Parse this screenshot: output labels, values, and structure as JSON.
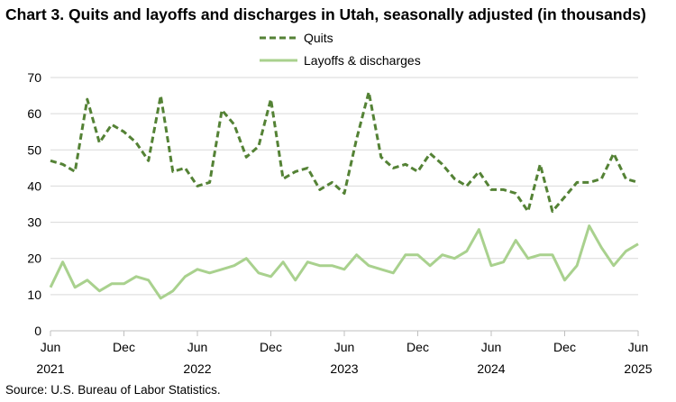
{
  "title": "Chart 3. Quits and layoffs and discharges in Utah, seasonally adjusted (in thousands)",
  "source": "Source: U.S. Bureau of Labor Statistics.",
  "chart_data": {
    "type": "line",
    "title": "Chart 3. Quits and layoffs and discharges in Utah, seasonally adjusted (in thousands)",
    "xlabel": "",
    "ylabel": "",
    "ylim": [
      0,
      70
    ],
    "yticks": [
      "0",
      "10",
      "20",
      "30",
      "40",
      "50",
      "60",
      "70"
    ],
    "grid": true,
    "legend": "top-center",
    "xtick_labels": [
      {
        "month": "Jun",
        "year": "2021"
      },
      {
        "month": "Dec",
        "year": ""
      },
      {
        "month": "Jun",
        "year": "2022"
      },
      {
        "month": "Dec",
        "year": ""
      },
      {
        "month": "Jun",
        "year": "2023"
      },
      {
        "month": "Dec",
        "year": ""
      },
      {
        "month": "Jun",
        "year": "2024"
      },
      {
        "month": "Dec",
        "year": ""
      },
      {
        "month": "Jun",
        "year": "2025"
      }
    ],
    "x": [
      "2021-06",
      "2021-07",
      "2021-08",
      "2021-09",
      "2021-10",
      "2021-11",
      "2021-12",
      "2022-01",
      "2022-02",
      "2022-03",
      "2022-04",
      "2022-05",
      "2022-06",
      "2022-07",
      "2022-08",
      "2022-09",
      "2022-10",
      "2022-11",
      "2022-12",
      "2023-01",
      "2023-02",
      "2023-03",
      "2023-04",
      "2023-05",
      "2023-06",
      "2023-07",
      "2023-08",
      "2023-09",
      "2023-10",
      "2023-11",
      "2023-12",
      "2024-01",
      "2024-02",
      "2024-03",
      "2024-04",
      "2024-05",
      "2024-06",
      "2024-07",
      "2024-08",
      "2024-09",
      "2024-10",
      "2024-11",
      "2024-12",
      "2025-01",
      "2025-02",
      "2025-03",
      "2025-04",
      "2025-05",
      "2025-06"
    ],
    "series": [
      {
        "name": "Quits",
        "color": "#548235",
        "style": "dashed",
        "values": [
          47,
          46,
          44,
          64,
          52,
          57,
          55,
          52,
          47,
          65,
          44,
          45,
          40,
          41,
          61,
          57,
          48,
          51,
          64,
          42,
          44,
          45,
          39,
          41,
          38,
          53,
          66,
          48,
          45,
          46,
          44,
          49,
          46,
          42,
          40,
          44,
          39,
          39,
          38,
          33,
          46,
          33,
          37,
          41,
          41,
          42,
          49,
          42,
          41
        ]
      },
      {
        "name": "Layoffs & discharges",
        "color": "#a9d18e",
        "style": "solid",
        "values": [
          12,
          19,
          12,
          14,
          11,
          13,
          13,
          15,
          14,
          9,
          11,
          15,
          17,
          16,
          17,
          18,
          20,
          16,
          15,
          19,
          14,
          19,
          18,
          18,
          17,
          21,
          18,
          17,
          16,
          21,
          21,
          18,
          21,
          20,
          22,
          28,
          18,
          19,
          25,
          20,
          21,
          21,
          14,
          18,
          29,
          23,
          18,
          22,
          24
        ]
      }
    ]
  }
}
